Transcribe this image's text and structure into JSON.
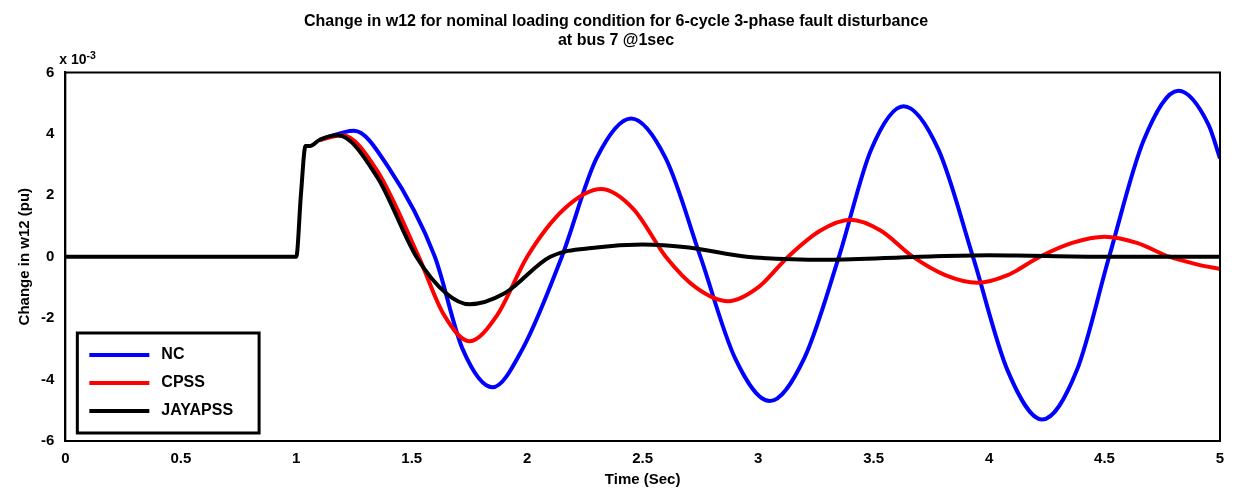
{
  "chart_data": {
    "type": "line",
    "title": "Change in w12 for nominal loading condition for 6-cycle 3-phase fault disturbance at bus 7 @1sec",
    "xlabel": "Time (Sec)",
    "ylabel": "Change in w12 (pu)",
    "annotations": [
      "x 10$^{-3}$"
    ],
    "xlim": [
      0,
      5
    ],
    "xticks": [
      0,
      0.5,
      1,
      1.5,
      2,
      2.5,
      3,
      3.5,
      4,
      4.5,
      5
    ],
    "ylim": [
      -6,
      6
    ],
    "yticks": [
      -6,
      -4,
      -2,
      0,
      2,
      4,
      6
    ],
    "grid": false,
    "legend": "bottom left",
    "line_style": "solid",
    "marker": "none",
    "series": [
      {
        "name": "NC",
        "color": "#0000ff",
        "x": [
          1.1,
          1.25,
          1.4,
          1.6,
          1.72,
          1.85,
          1.98,
          2.15,
          2.3,
          2.45,
          2.6,
          2.75,
          2.9,
          3.05,
          3.2,
          3.35,
          3.49,
          3.63,
          3.78,
          3.93,
          4.08,
          4.23,
          4.38,
          4.52,
          4.67,
          4.82,
          4.95,
          5
        ],
        "values": [
          3.8,
          4.1,
          2.9,
          0,
          -3.0,
          -4.25,
          -3.0,
          0,
          3.2,
          4.5,
          3.2,
          0,
          -3.3,
          -4.7,
          -3.3,
          0,
          3.5,
          4.9,
          3.5,
          0,
          -3.7,
          -5.3,
          -3.7,
          0,
          3.8,
          5.4,
          4.3,
          3.2
        ]
      },
      {
        "name": "CPSS",
        "color": "#ff0000",
        "x": [
          1.1,
          1.2,
          1.35,
          1.53,
          1.64,
          1.75,
          1.87,
          2.0,
          2.16,
          2.32,
          2.46,
          2.6,
          2.73,
          2.87,
          3.0,
          3.13,
          3.27,
          3.4,
          3.53,
          3.67,
          3.81,
          3.95,
          4.08,
          4.22,
          4.36,
          4.5,
          4.64,
          4.78,
          4.9,
          5
        ],
        "values": [
          3.8,
          3.95,
          2.8,
          0,
          -1.9,
          -2.75,
          -1.9,
          0,
          1.55,
          2.2,
          1.55,
          0,
          -1.0,
          -1.45,
          -1.0,
          0,
          0.85,
          1.2,
          0.85,
          0,
          -0.6,
          -0.85,
          -0.6,
          0,
          0.45,
          0.65,
          0.45,
          0,
          -0.25,
          -0.4
        ]
      },
      {
        "name": "JAYAPSS",
        "color": "#000000",
        "x": [
          0,
          0.98,
          1.0,
          1.02,
          1.04,
          1.06,
          1.1,
          1.18,
          1.35,
          1.52,
          1.65,
          1.75,
          1.9,
          2.1,
          2.3,
          2.5,
          2.7,
          2.95,
          3.3,
          3.7,
          4.0,
          4.5,
          5
        ],
        "values": [
          0,
          0,
          0,
          2.0,
          3.6,
          3.6,
          3.8,
          3.95,
          2.6,
          0,
          -1.2,
          -1.55,
          -1.2,
          0,
          0.3,
          0.4,
          0.3,
          0,
          -0.1,
          0,
          0.05,
          0,
          0
        ]
      }
    ]
  }
}
